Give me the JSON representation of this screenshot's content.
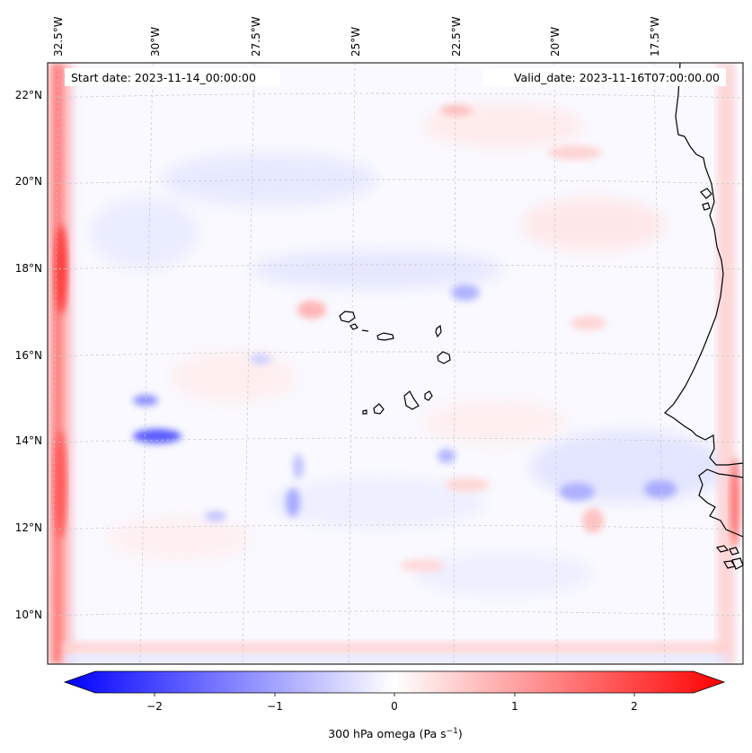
{
  "map": {
    "start_label": "Start date: 2023-11-14_00:00:00",
    "valid_label": "Valid_date: 2023-11-16T07:00:00.00",
    "lon_labels": [
      "32.5°W",
      "30°W",
      "27.5°W",
      "25°W",
      "22.5°W",
      "20°W",
      "17.5°W"
    ],
    "lat_labels": [
      "22°N",
      "20°N",
      "18°N",
      "16°N",
      "14°N",
      "12°N",
      "10°N"
    ]
  },
  "colorbar": {
    "label_text": "300 hPa omega (Pa s",
    "label_sup": "−1",
    "label_close": ")",
    "ticks": [
      "−2",
      "−1",
      "0",
      "1",
      "2"
    ],
    "range": [
      -2.7,
      2.7
    ],
    "low_color": "#0000ff",
    "mid_color": "#ffffff",
    "high_color": "#ff0000"
  }
}
